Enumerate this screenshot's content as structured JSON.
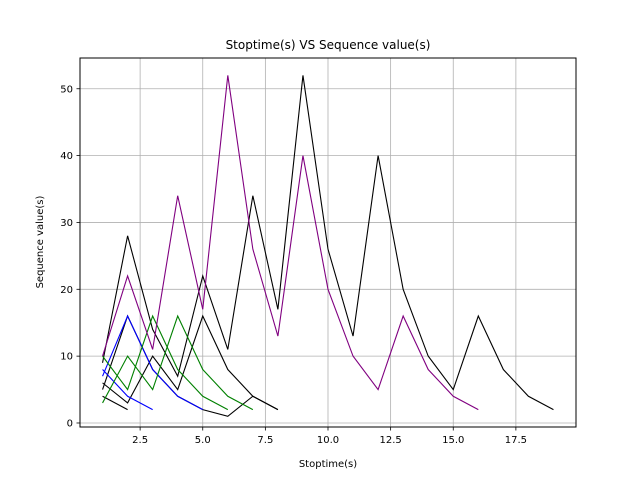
{
  "chart_data": {
    "type": "line",
    "title": "Stoptime(s) VS Sequence value(s)",
    "xlabel": "Stoptime(s)",
    "ylabel": "Sequence value(s)",
    "xlim": [
      0.1,
      19.9
    ],
    "ylim": [
      -0.6,
      54.6
    ],
    "xticks": [
      2.5,
      5.0,
      7.5,
      10.0,
      12.5,
      15.0,
      17.5
    ],
    "xtick_labels": [
      "2.5",
      "5.0",
      "7.5",
      "10.0",
      "12.5",
      "15.0",
      "17.5"
    ],
    "yticks": [
      0,
      10,
      20,
      30,
      40,
      50
    ],
    "ytick_labels": [
      "0",
      "10",
      "20",
      "30",
      "40",
      "50"
    ],
    "grid": true,
    "series": [
      {
        "color": "#000000",
        "x": [
          1,
          2
        ],
        "y": [
          4,
          2
        ]
      },
      {
        "color": "#000000",
        "x": [
          1,
          2,
          3,
          4,
          5,
          6,
          7,
          8
        ],
        "y": [
          5,
          16,
          8,
          4,
          2,
          1,
          4,
          2
        ]
      },
      {
        "color": "#000000",
        "x": [
          1,
          2,
          3,
          4,
          5,
          6,
          7,
          8,
          9,
          10,
          11,
          12,
          13,
          14,
          15,
          16,
          17,
          18,
          19
        ],
        "y": [
          9,
          28,
          14,
          7,
          22,
          11,
          34,
          17,
          52,
          26,
          13,
          40,
          20,
          10,
          5,
          16,
          8,
          4,
          2
        ]
      },
      {
        "color": "#000000",
        "x": [
          1,
          2,
          3,
          4,
          5,
          6,
          7,
          8
        ],
        "y": [
          6,
          3,
          10,
          5,
          16,
          8,
          4,
          2
        ]
      },
      {
        "color": "#0000ff",
        "x": [
          1,
          2,
          3
        ],
        "y": [
          8,
          4,
          2
        ]
      },
      {
        "color": "#0000ff",
        "x": [
          1,
          2,
          3,
          4,
          5
        ],
        "y": [
          7,
          16,
          8,
          4,
          2
        ]
      },
      {
        "color": "#008000",
        "x": [
          1,
          2,
          3,
          4,
          5,
          6
        ],
        "y": [
          10,
          5,
          16,
          8,
          4,
          2
        ]
      },
      {
        "color": "#008000",
        "x": [
          1,
          2,
          3,
          4,
          5,
          6,
          7
        ],
        "y": [
          3,
          10,
          5,
          16,
          8,
          4,
          2
        ]
      },
      {
        "color": "#800080",
        "x": [
          1,
          2,
          3,
          4,
          5,
          6,
          7,
          8,
          9,
          10,
          11,
          12,
          13,
          14,
          15,
          16
        ],
        "y": [
          10,
          22,
          11,
          34,
          17,
          52,
          26,
          13,
          40,
          20,
          10,
          5,
          16,
          8,
          4,
          2
        ]
      }
    ]
  }
}
